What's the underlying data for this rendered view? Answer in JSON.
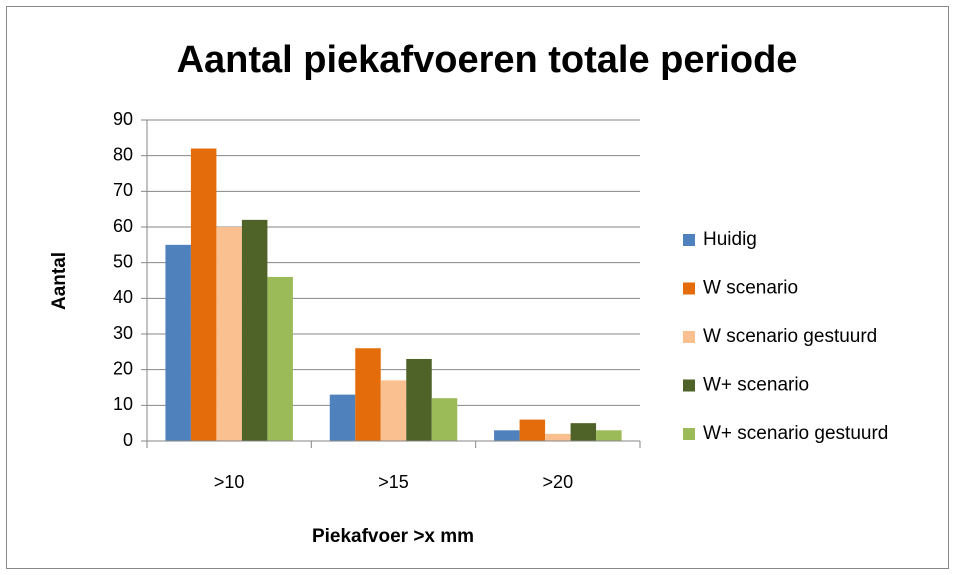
{
  "chart_data": {
    "type": "bar",
    "title": "Aantal piekafvoeren totale periode",
    "x_label": "Piekafvoer >x mm",
    "y_label": "Aantal",
    "categories": [
      ">10",
      ">15",
      ">20"
    ],
    "series": [
      {
        "name": "Huidig",
        "color": "#4f81bd",
        "values": [
          55,
          13,
          3
        ]
      },
      {
        "name": "W scenario",
        "color": "#e46c0a",
        "values": [
          82,
          26,
          6
        ]
      },
      {
        "name": "W scenario gestuurd",
        "color": "#fac090",
        "values": [
          60,
          17,
          2
        ]
      },
      {
        "name": "W+ scenario",
        "color": "#4f6228",
        "values": [
          62,
          23,
          5
        ]
      },
      {
        "name": "W+ scenario gestuurd",
        "color": "#9bbb59",
        "values": [
          46,
          12,
          3
        ]
      }
    ],
    "ylim": [
      0,
      90
    ],
    "yticks": [
      0,
      10,
      20,
      30,
      40,
      50,
      60,
      70,
      80,
      90
    ],
    "grid": true,
    "legend": "right"
  }
}
